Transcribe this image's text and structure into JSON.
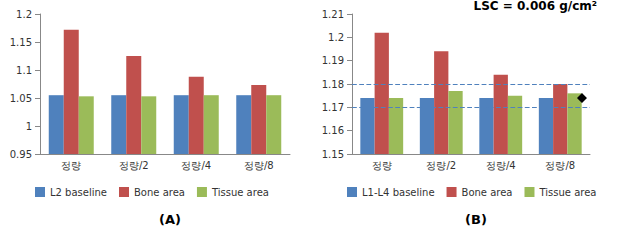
{
  "chart_data": [
    {
      "type": "bar",
      "title": "(A)",
      "categories": [
        "정량",
        "정량/2",
        "정량/4",
        "정량/8"
      ],
      "series": [
        {
          "name": "L2 baseline",
          "color": "#4f81bd",
          "values": [
            1.055,
            1.055,
            1.055,
            1.055
          ]
        },
        {
          "name": "Bone area",
          "color": "#c0504d",
          "values": [
            1.172,
            1.125,
            1.088,
            1.073
          ]
        },
        {
          "name": "Tissue area",
          "color": "#9bbb59",
          "values": [
            1.053,
            1.053,
            1.055,
            1.055
          ]
        }
      ],
      "ylim": [
        0.95,
        1.2
      ],
      "yticks": [
        0.95,
        1,
        1.05,
        1.1,
        1.15,
        1.2
      ],
      "grid": false,
      "legend": "bottom"
    },
    {
      "type": "bar",
      "title": "(B)",
      "annotation": "LSC = 0.006 g/cm²",
      "categories": [
        "정량",
        "정량/2",
        "정량/4",
        "정량/8"
      ],
      "series": [
        {
          "name": "L1-L4 baseline",
          "color": "#4f81bd",
          "values": [
            1.174,
            1.174,
            1.174,
            1.174
          ]
        },
        {
          "name": "Bone area",
          "color": "#c0504d",
          "values": [
            1.202,
            1.194,
            1.184,
            1.18
          ]
        },
        {
          "name": "Tissue area",
          "color": "#9bbb59",
          "values": [
            1.174,
            1.177,
            1.175,
            1.176
          ]
        }
      ],
      "ylim": [
        1.15,
        1.21
      ],
      "yticks": [
        1.15,
        1.16,
        1.17,
        1.18,
        1.19,
        1.2,
        1.21
      ],
      "reference_lines": [
        1.171,
        1.177
      ],
      "reference_point": {
        "value": 1.174,
        "marker": "diamond"
      },
      "grid": false,
      "legend": "bottom"
    }
  ]
}
